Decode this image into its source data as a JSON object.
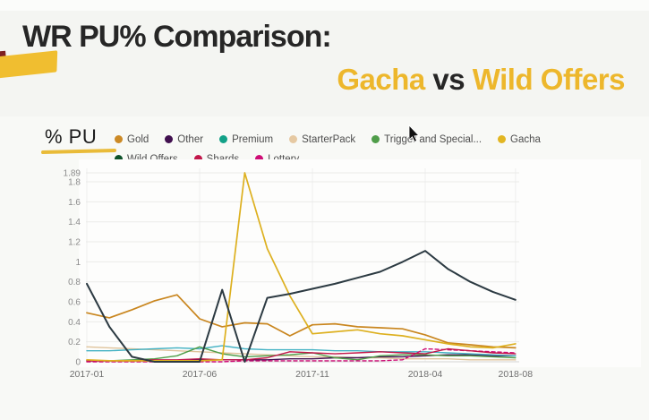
{
  "slide": {
    "title_line1": "WR PU% Comparison:",
    "title2_gacha": "Gacha",
    "title2_vs": " vs ",
    "title2_wild": "Wild Offers",
    "accent_color": "#f0be30",
    "highlight_color": "#edb72c"
  },
  "chart_data": {
    "type": "line",
    "title": "WR PU% Comparison: Gacha vs Wild Offers",
    "xlabel": "",
    "ylabel": "% PU",
    "grid": true,
    "legend_position": "top-left, two rows",
    "ylim": [
      0,
      1.95
    ],
    "x": [
      "2017-01",
      "2017-02",
      "2017-03",
      "2017-04",
      "2017-05",
      "2017-06",
      "2017-07",
      "2017-08",
      "2017-09",
      "2017-10",
      "2017-11",
      "2017-12",
      "2018-01",
      "2018-02",
      "2018-03",
      "2018-04",
      "2018-05",
      "2018-06",
      "2018-07",
      "2018-08"
    ],
    "x_tick_indices": [
      0,
      5,
      10,
      15,
      19
    ],
    "x_tick_labels": [
      "2017-01",
      "2017-06",
      "2017-11",
      "2018-04",
      "2018-08"
    ],
    "y_ticks": [
      {
        "v": 1.89,
        "label": "1.89"
      },
      {
        "v": 1.8,
        "label": "1.8"
      },
      {
        "v": 1.6,
        "label": "1.6"
      },
      {
        "v": 1.4,
        "label": "1.4"
      },
      {
        "v": 1.2,
        "label": "1.2"
      },
      {
        "v": 1.0,
        "label": "1"
      },
      {
        "v": 0.8,
        "label": "0.8"
      },
      {
        "v": 0.6,
        "label": "0.6"
      },
      {
        "v": 0.4,
        "label": "0.4"
      },
      {
        "v": 0.2,
        "label": "0.2"
      },
      {
        "v": 0,
        "label": "0"
      }
    ],
    "series": [
      {
        "name": "Gold",
        "color": "#cc8a26",
        "line_color": "#c9861f",
        "dash": false,
        "values": [
          0.49,
          0.44,
          0.52,
          0.61,
          0.67,
          0.43,
          0.35,
          0.39,
          0.38,
          0.26,
          0.37,
          0.38,
          0.35,
          0.34,
          0.33,
          0.27,
          0.19,
          0.17,
          0.15,
          0.14
        ]
      },
      {
        "name": "Other",
        "color": "#41104f",
        "line_color": "#41104f",
        "dash": false,
        "values": [
          0.01,
          0.01,
          0.01,
          0.01,
          0.01,
          0.02,
          0.02,
          0.02,
          0.02,
          0.03,
          0.03,
          0.04,
          0.04,
          0.05,
          0.05,
          0.06,
          0.07,
          0.07,
          0.06,
          0.06
        ]
      },
      {
        "name": "Premium",
        "color": "#13a188",
        "line_color": "#44b2c4",
        "dash": false,
        "values": [
          0.11,
          0.11,
          0.12,
          0.13,
          0.14,
          0.13,
          0.16,
          0.13,
          0.12,
          0.12,
          0.12,
          0.11,
          0.11,
          0.1,
          0.1,
          0.1,
          0.09,
          0.08,
          0.07,
          0.06
        ]
      },
      {
        "name": "StarterPack",
        "color": "#e6c9a2",
        "line_color": "#dfc39b",
        "dash": false,
        "values": [
          0.15,
          0.14,
          0.13,
          0.12,
          0.11,
          0.1,
          0.09,
          0.08,
          0.07,
          0.06,
          0.05,
          0.05,
          0.04,
          0.04,
          0.03,
          0.03,
          0.03,
          0.02,
          0.02,
          0.02
        ]
      },
      {
        "name": "Trigger and Special...",
        "color": "#4f9d49",
        "line_color": "#4f9d49",
        "dash": false,
        "values": [
          0.01,
          0.01,
          0.02,
          0.03,
          0.06,
          0.15,
          0.08,
          0.05,
          0.06,
          0.07,
          0.09,
          0.04,
          0.02,
          0.06,
          0.07,
          0.07,
          0.06,
          0.06,
          0.05,
          0.04
        ]
      },
      {
        "name": "Gacha",
        "color": "#e2b622",
        "line_color": "#ddb01f",
        "dash": false,
        "values": [
          0.02,
          0.01,
          0.01,
          0.01,
          0.01,
          0.01,
          0.02,
          1.89,
          1.13,
          0.66,
          0.28,
          0.3,
          0.32,
          0.28,
          0.26,
          0.22,
          0.18,
          0.15,
          0.14,
          0.18
        ]
      },
      {
        "name": "Wild Offers",
        "color": "#0c5128",
        "line_color": "#2c3a42",
        "dash": false,
        "values": [
          0.78,
          0.35,
          0.05,
          0,
          0,
          0,
          0.72,
          0,
          0.64,
          0.68,
          0.73,
          0.78,
          0.84,
          0.9,
          1.0,
          1.11,
          0.93,
          0.8,
          0.7,
          0.62
        ]
      },
      {
        "name": "Shards",
        "color": "#c2174a",
        "line_color": "#c2174a",
        "dash": false,
        "values": [
          0.01,
          0.01,
          0.01,
          0.02,
          0.02,
          0.03,
          0.02,
          0.02,
          0.04,
          0.1,
          0.09,
          0.08,
          0.09,
          0.1,
          0.09,
          0.08,
          0.13,
          0.11,
          0.09,
          0.08
        ]
      },
      {
        "name": "Lottery",
        "color": "#ce0d76",
        "line_color": "#ce0d76",
        "dash": true,
        "values": [
          0,
          0,
          0,
          0,
          0,
          0,
          0,
          0.01,
          0.01,
          0.01,
          0.01,
          0.01,
          0.01,
          0.01,
          0.02,
          0.13,
          0.12,
          0.11,
          0.1,
          0.09
        ]
      }
    ],
    "legend_rows": [
      [
        0,
        1,
        2,
        3,
        4,
        5
      ],
      [
        6,
        7,
        8
      ]
    ]
  }
}
